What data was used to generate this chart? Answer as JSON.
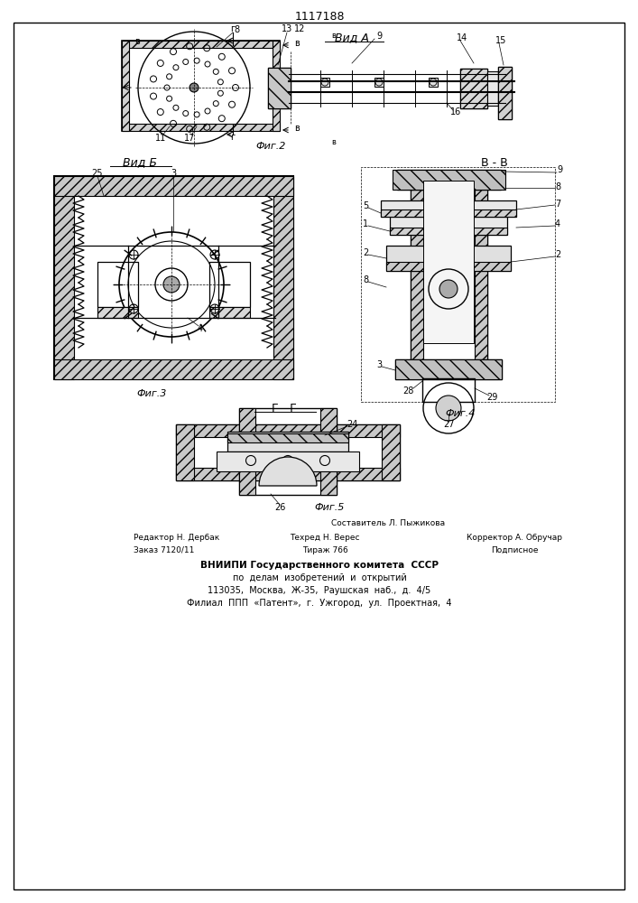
{
  "patent_number": "1117188",
  "background_color": "#ffffff",
  "line_color": "#000000",
  "fig_width": 7.07,
  "fig_height": 10.0,
  "footer_lines": [
    "Составитель Л. Пыжикова",
    "Редактор Н. Дербак          Техред Н. Верес          Корректор А. Обручар",
    "Заказ 7120/11               Тираж 766                Подписное",
    "ВНИИПИ Государственного комитета СССР",
    "по делам изобретений и открытий",
    "113035, Москва, Ж-35, Раушская наб., д. 4/5",
    "Филиал ППП «Патент», г. Ужгород, ул. Проектная, 4"
  ],
  "view_labels": {
    "vid_a": "Вид А",
    "vid_b": "Вид Б",
    "vid_g": "Г - Г",
    "section_bb": "В - В"
  },
  "fig_captions": [
    "Фиг.2",
    "Фиг.3",
    "Фиг.4",
    "Фиг.5"
  ]
}
